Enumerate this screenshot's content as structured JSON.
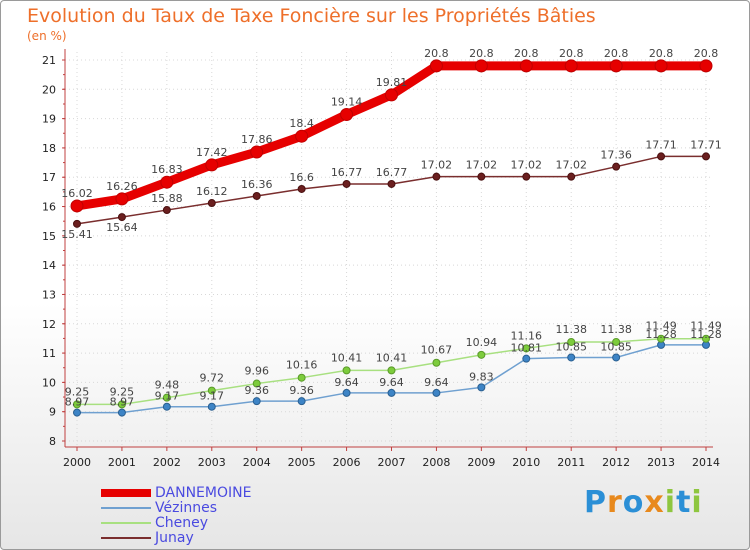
{
  "title": "Evolution du Taux de Taxe Foncière sur les Propriétés Bâties",
  "subtitle": "(en %)",
  "logo": [
    "P",
    "r",
    "o",
    "x",
    "i",
    "t",
    "i"
  ],
  "logo_colors": [
    "#2b8fd6",
    "#e8891d",
    "#2b8fd6",
    "#e8891d",
    "#8ec63f",
    "#2b8fd6",
    "#8ec63f"
  ],
  "chart_data": {
    "type": "line",
    "x": [
      2000,
      2001,
      2002,
      2003,
      2004,
      2005,
      2006,
      2007,
      2008,
      2009,
      2010,
      2011,
      2012,
      2013,
      2014
    ],
    "ylim": [
      8,
      21
    ],
    "yticks": [
      8,
      9,
      10,
      11,
      12,
      13,
      14,
      15,
      16,
      17,
      18,
      19,
      20,
      21
    ],
    "legend_position": "bottom-left",
    "series": [
      {
        "name": "DANNEMOINE",
        "color": "#e60000",
        "values": [
          16.02,
          16.26,
          16.83,
          17.42,
          17.86,
          18.4,
          19.14,
          19.81,
          20.8,
          20.8,
          20.8,
          20.8,
          20.8,
          20.8,
          20.8
        ],
        "labels": [
          "16.02",
          "16.26",
          "16.83",
          "17.42",
          "17.86",
          "18.4",
          "19.14",
          "19.81",
          "20.8",
          "20.8",
          "20.8",
          "20.8",
          "20.8",
          "20.8",
          "20.8"
        ]
      },
      {
        "name": "Vézinnes",
        "color": "#6fa0d0",
        "values": [
          8.97,
          8.97,
          9.17,
          9.17,
          9.36,
          9.36,
          9.64,
          9.64,
          9.64,
          9.83,
          10.81,
          10.85,
          10.85,
          11.28,
          11.28
        ],
        "labels": [
          "8.97",
          "8.97",
          "9.17",
          "9.17",
          "9.36",
          "9.36",
          "9.64",
          "9.64",
          "9.64",
          "9.83",
          "10.81",
          "10.85",
          "10.85",
          "11.28",
          "11.28"
        ]
      },
      {
        "name": "Cheney",
        "color": "#a8e080",
        "values": [
          9.25,
          9.25,
          9.48,
          9.72,
          9.96,
          10.16,
          10.41,
          10.41,
          10.67,
          10.94,
          11.16,
          11.38,
          11.38,
          11.49,
          11.49
        ],
        "labels": [
          "9.25",
          "9.25",
          "9.48",
          "9.72",
          "9.96",
          "10.16",
          "10.41",
          "10.41",
          "10.67",
          "10.94",
          "11.16",
          "11.38",
          "11.38",
          "11.49",
          "11.49"
        ]
      },
      {
        "name": "Junay",
        "color": "#7a2e2e",
        "values": [
          15.41,
          15.64,
          15.88,
          16.12,
          16.36,
          16.6,
          16.77,
          16.77,
          17.02,
          17.02,
          17.02,
          17.02,
          17.36,
          17.71,
          17.71
        ],
        "labels": [
          "15.41",
          "15.64",
          "15.88",
          "16.12",
          "16.36",
          "16.6",
          "16.77",
          "16.77",
          "17.02",
          "17.02",
          "17.02",
          "17.02",
          "17.36",
          "17.71",
          "17.71"
        ]
      }
    ]
  }
}
